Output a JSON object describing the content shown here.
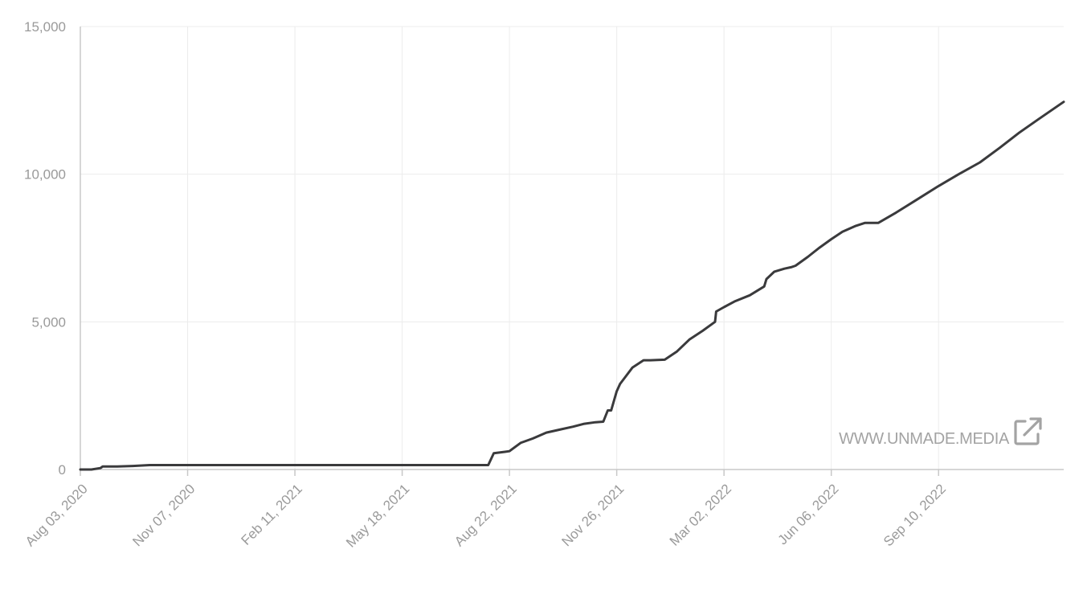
{
  "watermark": {
    "text": "WWW.UNMADE.MEDIA",
    "icon": "external-link-icon"
  },
  "colors": {
    "line": "#3a3a3c",
    "grid": "#ececec",
    "axis": "#c8c8c8",
    "tick_text": "#9a9a9a",
    "watermark": "#a3a3a3"
  },
  "chart_data": {
    "type": "line",
    "title": "",
    "xlabel": "",
    "ylabel": "",
    "x_type": "date",
    "xlim": [
      "2020-08-03",
      "2022-12-31"
    ],
    "ylim": [
      0,
      15000
    ],
    "y_ticks": [
      0,
      5000,
      10000,
      15000
    ],
    "y_tick_labels": [
      "0",
      "5,000",
      "10,000",
      "15,000"
    ],
    "x_ticks": [
      "2020-08-03",
      "2020-11-07",
      "2021-02-11",
      "2021-05-18",
      "2021-08-22",
      "2021-11-26",
      "2022-03-02",
      "2022-06-06",
      "2022-09-10"
    ],
    "x_tick_labels": [
      "Aug 03, 2020",
      "Nov 07, 2020",
      "Feb 11, 2021",
      "May 18, 2021",
      "Aug 22, 2021",
      "Nov 26, 2021",
      "Mar 02, 2022",
      "Jun 06, 2022",
      "Sep 10, 2022"
    ],
    "grid": true,
    "legend": "none",
    "series": [
      {
        "x": [
          "2020-08-03",
          "2020-08-13",
          "2020-08-21",
          "2020-08-23",
          "2020-09-05",
          "2020-09-19",
          "2020-10-04",
          "2021-01-01",
          "2021-04-01",
          "2021-07-01",
          "2021-07-31",
          "2021-08-03",
          "2021-08-08",
          "2021-08-18",
          "2021-08-22",
          "2021-09-01",
          "2021-09-12",
          "2021-09-24",
          "2021-10-06",
          "2021-10-18",
          "2021-10-28",
          "2021-11-07",
          "2021-11-14",
          "2021-11-18",
          "2021-11-21",
          "2021-11-26",
          "2021-11-29",
          "2021-12-03",
          "2021-12-10",
          "2021-12-20",
          "2021-12-26",
          "2022-01-08",
          "2022-01-19",
          "2022-01-30",
          "2022-02-11",
          "2022-02-22",
          "2022-02-23",
          "2022-03-02",
          "2022-03-12",
          "2022-03-25",
          "2022-04-07",
          "2022-04-09",
          "2022-04-16",
          "2022-04-25",
          "2022-05-01",
          "2022-05-05",
          "2022-05-16",
          "2022-05-26",
          "2022-06-06",
          "2022-06-16",
          "2022-06-28",
          "2022-07-06",
          "2022-07-18",
          "2022-08-03",
          "2022-08-20",
          "2022-09-10",
          "2022-09-28",
          "2022-10-17",
          "2022-11-04",
          "2022-11-21",
          "2022-12-08",
          "2022-12-31"
        ],
        "y": [
          0,
          0,
          50,
          100,
          100,
          120,
          150,
          150,
          150,
          150,
          150,
          150,
          550,
          600,
          620,
          900,
          1050,
          1250,
          1350,
          1450,
          1550,
          1600,
          1620,
          2000,
          2000,
          2650,
          2900,
          3100,
          3450,
          3700,
          3700,
          3720,
          4000,
          4400,
          4700,
          5000,
          5350,
          5500,
          5700,
          5900,
          6200,
          6450,
          6700,
          6800,
          6850,
          6900,
          7200,
          7500,
          7800,
          8050,
          8250,
          8350,
          8350,
          8700,
          9100,
          9600,
          10000,
          10400,
          10900,
          11400,
          11850,
          12450
        ]
      }
    ]
  }
}
